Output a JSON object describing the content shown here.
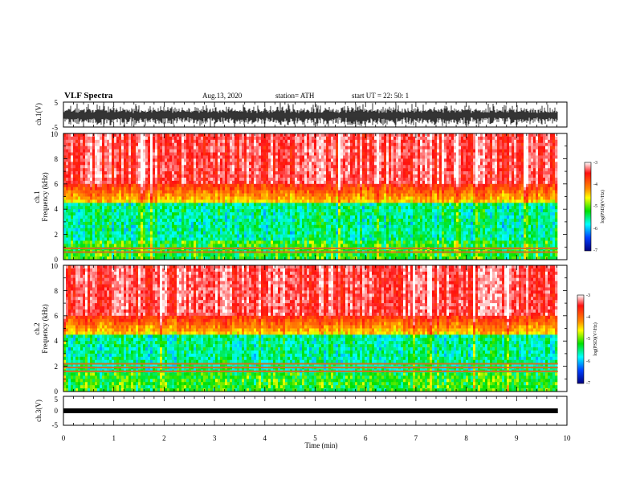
{
  "header": {
    "title": "VLF Spectra",
    "date": "Aug.13, 2020",
    "station": "station= ATH",
    "start": "start  UT  =   22: 50: 1"
  },
  "chart_data": [
    {
      "id": "ch1_waveform",
      "type": "line",
      "ylabel": "ch.1(V)",
      "ylim": [
        -5,
        5
      ],
      "y_ticks": [
        "5",
        "-5"
      ],
      "xlim": [
        0,
        10
      ],
      "data_extent_min": 9.82,
      "description_colors": {
        "line": "#000000"
      }
    },
    {
      "id": "ch1_spectrogram",
      "type": "heatmap",
      "ylabel_line1": "ch.1",
      "ylabel_line2": "Frequency (kHz)",
      "ylim": [
        0,
        10
      ],
      "y_ticks": [
        "0",
        "2",
        "4",
        "6",
        "8",
        "10"
      ],
      "xlim": [
        0,
        10
      ],
      "data_extent_min": 9.82,
      "colorbar": {
        "label": "log(PSD)(V²/Hz)",
        "range": [
          -7,
          -3
        ],
        "ticks": [
          "-3",
          "-4",
          "-5",
          "-6",
          "-7"
        ]
      },
      "bands_khz": [
        0.9,
        0.6
      ]
    },
    {
      "id": "ch2_spectrogram",
      "type": "heatmap",
      "ylabel_line1": "ch.2",
      "ylabel_line2": "Frequency (kHz)",
      "ylim": [
        0,
        10
      ],
      "y_ticks": [
        "0",
        "2",
        "4",
        "6",
        "8",
        "10"
      ],
      "xlim": [
        0,
        10
      ],
      "data_extent_min": 9.82,
      "colorbar": {
        "label": "log(PSD)(V²/Hz)",
        "range": [
          -7,
          -3
        ],
        "ticks": [
          "-3",
          "-4",
          "-5",
          "-6",
          "-7"
        ]
      },
      "bands_khz": [
        1.9,
        1.6,
        2.2
      ]
    },
    {
      "id": "ch3_waveform",
      "type": "line",
      "ylabel": "ch.3(V)",
      "ylim": [
        -5,
        5
      ],
      "y_ticks": [
        "5",
        "0",
        "-5"
      ],
      "xlim": [
        0,
        10
      ],
      "data_extent_min": 9.82,
      "xlabel": "Time (min)",
      "x_ticks": [
        "0",
        "1",
        "2",
        "3",
        "4",
        "5",
        "6",
        "7",
        "8",
        "9",
        "10"
      ],
      "level_v": 0
    }
  ]
}
